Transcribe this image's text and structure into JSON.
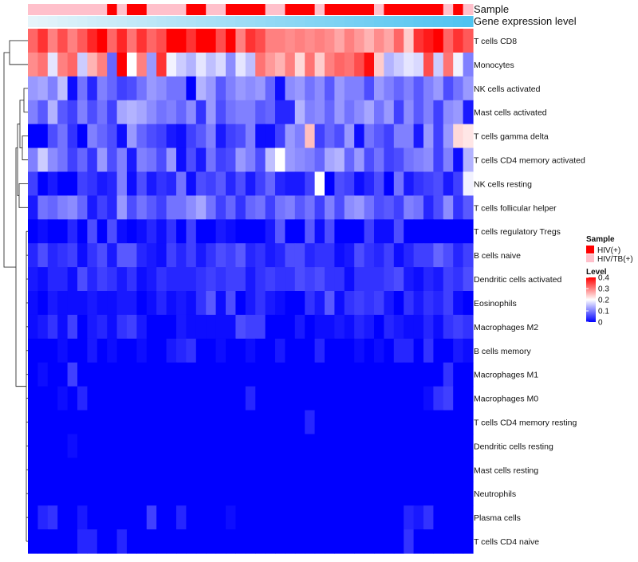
{
  "chart_data": {
    "type": "heatmap",
    "title": "",
    "annotation_tracks": [
      {
        "name": "Sample",
        "label": "Sample"
      },
      {
        "name": "Gene expression level",
        "label": "Gene expression level"
      }
    ],
    "sample_groups": {
      "HIV(+)": "#ff0000",
      "HIV/TB(+)": "#ffc0cb"
    },
    "sample_annotation": [
      "HIV/TB(+)",
      "HIV/TB(+)",
      "HIV/TB(+)",
      "HIV/TB(+)",
      "HIV/TB(+)",
      "HIV/TB(+)",
      "HIV/TB(+)",
      "HIV/TB(+)",
      "HIV(+)",
      "HIV/TB(+)",
      "HIV(+)",
      "HIV(+)",
      "HIV/TB(+)",
      "HIV/TB(+)",
      "HIV/TB(+)",
      "HIV/TB(+)",
      "HIV(+)",
      "HIV(+)",
      "HIV/TB(+)",
      "HIV/TB(+)",
      "HIV(+)",
      "HIV(+)",
      "HIV(+)",
      "HIV(+)",
      "HIV/TB(+)",
      "HIV/TB(+)",
      "HIV(+)",
      "HIV(+)",
      "HIV(+)",
      "HIV/TB(+)",
      "HIV(+)",
      "HIV(+)",
      "HIV(+)",
      "HIV(+)",
      "HIV(+)",
      "HIV/TB(+)",
      "HIV(+)",
      "HIV(+)",
      "HIV(+)",
      "HIV(+)",
      "HIV(+)",
      "HIV(+)",
      "HIV/TB(+)",
      "HIV(+)",
      "HIV/TB(+)"
    ],
    "gene_expression_level": [
      0,
      0.02,
      0.04,
      0.07,
      0.09,
      0.11,
      0.14,
      0.16,
      0.18,
      0.2,
      0.23,
      0.25,
      0.27,
      0.3,
      0.32,
      0.34,
      0.36,
      0.39,
      0.41,
      0.43,
      0.45,
      0.48,
      0.5,
      0.52,
      0.55,
      0.57,
      0.59,
      0.61,
      0.64,
      0.66,
      0.68,
      0.7,
      0.73,
      0.75,
      0.77,
      0.8,
      0.82,
      0.84,
      0.86,
      0.89,
      0.91,
      0.93,
      0.95,
      0.98,
      1
    ],
    "rows": [
      "T cells CD8",
      "Monocytes",
      "NK cells activated",
      "Mast cells activated",
      "T cells gamma delta",
      "T cells CD4 memory activated",
      "NK cells resting",
      "T cells follicular helper",
      "T cells regulatory  Tregs",
      "B cells naive",
      "Dendritic cells activated",
      "Eosinophils",
      "Macrophages M2",
      "B cells memory",
      "Macrophages M1",
      "Macrophages M0",
      "T cells CD4 memory resting",
      "Dendritic cells resting",
      "Mast cells resting",
      "Neutrophils",
      "Plasma cells",
      "T cells CD4 naive"
    ],
    "values": [
      [
        0.32,
        0.36,
        0.3,
        0.34,
        0.3,
        0.33,
        0.37,
        0.4,
        0.32,
        0.37,
        0.31,
        0.36,
        0.32,
        0.34,
        0.4,
        0.4,
        0.36,
        0.4,
        0.4,
        0.34,
        0.4,
        0.3,
        0.36,
        0.34,
        0.3,
        0.3,
        0.29,
        0.3,
        0.29,
        0.3,
        0.29,
        0.27,
        0.3,
        0.28,
        0.26,
        0.29,
        0.27,
        0.32,
        0.24,
        0.36,
        0.38,
        0.4,
        0.32,
        0.36,
        0.33
      ],
      [
        0.29,
        0.31,
        0.18,
        0.3,
        0.32,
        0.16,
        0.26,
        0.3,
        0.08,
        0.4,
        0.2,
        0.3,
        0.12,
        0.36,
        0.19,
        0.16,
        0.14,
        0.18,
        0.15,
        0.17,
        0.11,
        0.18,
        0.15,
        0.31,
        0.28,
        0.26,
        0.3,
        0.23,
        0.31,
        0.24,
        0.3,
        0.32,
        0.31,
        0.34,
        0.39,
        0.24,
        0.14,
        0.16,
        0.18,
        0.17,
        0.34,
        0.16,
        0.31,
        0.19,
        0.1
      ],
      [
        0.12,
        0.13,
        0.1,
        0.15,
        0.01,
        0.09,
        0.03,
        0.1,
        0.08,
        0.05,
        0.06,
        0.09,
        0.12,
        0.11,
        0.09,
        0.09,
        0.0,
        0.14,
        0.12,
        0.07,
        0.1,
        0.12,
        0.11,
        0.12,
        0.08,
        0.01,
        0.11,
        0.12,
        0.09,
        0.11,
        0.07,
        0.12,
        0.1,
        0.1,
        0.06,
        0.12,
        0.1,
        0.08,
        0.1,
        0.07,
        0.1,
        0.12,
        0.06,
        0.09,
        0.12
      ],
      [
        0.1,
        0.07,
        0.14,
        0.07,
        0.05,
        0.1,
        0.06,
        0.09,
        0.05,
        0.13,
        0.14,
        0.13,
        0.11,
        0.09,
        0.1,
        0.08,
        0.11,
        0.04,
        0.12,
        0.06,
        0.09,
        0.1,
        0.1,
        0.07,
        0.08,
        0.03,
        0.03,
        0.14,
        0.1,
        0.11,
        0.08,
        0.12,
        0.09,
        0.11,
        0.13,
        0.09,
        0.12,
        0.05,
        0.11,
        0.07,
        0.1,
        0.05,
        0.11,
        0.12,
        0.02
      ],
      [
        0.0,
        0.0,
        0.06,
        0.09,
        0.04,
        0.0,
        0.1,
        0.08,
        0.06,
        0.01,
        0.12,
        0.08,
        0.06,
        0.05,
        0.02,
        0.01,
        0.05,
        0.07,
        0.1,
        0.02,
        0.05,
        0.06,
        0.1,
        0.01,
        0.01,
        0.05,
        0.12,
        0.1,
        0.25,
        0.05,
        0.08,
        0.06,
        0.12,
        0.01,
        0.09,
        0.07,
        0.05,
        0.1,
        0.1,
        0.02,
        0.12,
        0.05,
        0.12,
        0.23,
        0.22
      ],
      [
        0.1,
        0.16,
        0.11,
        0.09,
        0.05,
        0.08,
        0.04,
        0.12,
        0.06,
        0.1,
        0.02,
        0.1,
        0.09,
        0.06,
        0.12,
        0.01,
        0.06,
        0.02,
        0.09,
        0.05,
        0.06,
        0.12,
        0.1,
        0.06,
        0.15,
        0.2,
        0.12,
        0.11,
        0.1,
        0.08,
        0.13,
        0.14,
        0.08,
        0.12,
        0.06,
        0.09,
        0.05,
        0.06,
        0.09,
        0.1,
        0.11,
        0.05,
        0.1,
        0.01,
        0.14
      ],
      [
        0.05,
        0.0,
        0.02,
        0.0,
        0.0,
        0.05,
        0.04,
        0.02,
        0.03,
        0.1,
        0.01,
        0.06,
        0.02,
        0.04,
        0.03,
        0.09,
        0.01,
        0.06,
        0.05,
        0.07,
        0.03,
        0.06,
        0.02,
        0.05,
        0.08,
        0.03,
        0.02,
        0.02,
        0.05,
        0.2,
        0.0,
        0.06,
        0.05,
        0.01,
        0.03,
        0.06,
        0.0,
        0.09,
        0.02,
        0.04,
        0.05,
        0.06,
        0.02,
        0.05,
        0.19
      ],
      [
        0.02,
        0.09,
        0.08,
        0.1,
        0.11,
        0.08,
        0.02,
        0.05,
        0.03,
        0.12,
        0.06,
        0.09,
        0.07,
        0.05,
        0.09,
        0.09,
        0.11,
        0.13,
        0.09,
        0.05,
        0.08,
        0.04,
        0.08,
        0.09,
        0.05,
        0.09,
        0.1,
        0.07,
        0.09,
        0.05,
        0.1,
        0.06,
        0.11,
        0.12,
        0.09,
        0.06,
        0.07,
        0.05,
        0.1,
        0.09,
        0.03,
        0.06,
        0.11,
        0.04,
        0.07
      ],
      [
        0.0,
        0.01,
        0.0,
        0.0,
        0.03,
        0.0,
        0.06,
        0.0,
        0.06,
        0.01,
        0.0,
        0.01,
        0.03,
        0.01,
        0.04,
        0.0,
        0.05,
        0.0,
        0.0,
        0.02,
        0.01,
        0.0,
        0.0,
        0.0,
        0.02,
        0.07,
        0.0,
        0.0,
        0.07,
        0.01,
        0.06,
        0.0,
        0.0,
        0.0,
        0.05,
        0.01,
        0.01,
        0.06,
        0.0,
        0.0,
        0.0,
        0.0,
        0.0,
        0.0,
        0.0
      ],
      [
        0.03,
        0.06,
        0.03,
        0.04,
        0.05,
        0.01,
        0.04,
        0.06,
        0.02,
        0.07,
        0.07,
        0.03,
        0.02,
        0.01,
        0.05,
        0.03,
        0.05,
        0.02,
        0.04,
        0.06,
        0.05,
        0.07,
        0.03,
        0.04,
        0.02,
        0.03,
        0.06,
        0.06,
        0.03,
        0.04,
        0.04,
        0.01,
        0.02,
        0.06,
        0.04,
        0.03,
        0.05,
        0.01,
        0.03,
        0.05,
        0.05,
        0.08,
        0.06,
        0.03,
        0.05
      ],
      [
        0.02,
        0.01,
        0.03,
        0.03,
        0.01,
        0.06,
        0.03,
        0.05,
        0.04,
        0.02,
        0.04,
        0.01,
        0.02,
        0.04,
        0.03,
        0.03,
        0.03,
        0.04,
        0.05,
        0.04,
        0.05,
        0.05,
        0.02,
        0.04,
        0.05,
        0.04,
        0.04,
        0.06,
        0.05,
        0.06,
        0.04,
        0.04,
        0.01,
        0.04,
        0.04,
        0.04,
        0.05,
        0.06,
        0.02,
        0.01,
        0.03,
        0.02,
        0.05,
        0.04,
        0.06
      ],
      [
        0.01,
        0.0,
        0.02,
        0.01,
        0.01,
        0.01,
        0.02,
        0.01,
        0.01,
        0.02,
        0.02,
        0.0,
        0.01,
        0.03,
        0.01,
        0.02,
        0.01,
        0.04,
        0.07,
        0.01,
        0.06,
        0.0,
        0.02,
        0.04,
        0.02,
        0.01,
        0.0,
        0.0,
        0.04,
        0.02,
        0.07,
        0.01,
        0.04,
        0.05,
        0.04,
        0.05,
        0.02,
        0.0,
        0.04,
        0.02,
        0.04,
        0.03,
        0.05,
        0.01,
        0.0
      ],
      [
        0.01,
        0.02,
        0.04,
        0.01,
        0.05,
        0.0,
        0.02,
        0.03,
        0.01,
        0.04,
        0.05,
        0.02,
        0.0,
        0.0,
        0.0,
        0.02,
        0.01,
        0.01,
        0.01,
        0.01,
        0.01,
        0.06,
        0.05,
        0.05,
        0.0,
        0.0,
        0.0,
        0.02,
        0.0,
        0.01,
        0.01,
        0.02,
        0.01,
        0.03,
        0.02,
        0.0,
        0.03,
        0.02,
        0.01,
        0.01,
        0.03,
        0.01,
        0.04,
        0.05,
        0.04
      ],
      [
        0.0,
        0.0,
        0.0,
        0.01,
        0.0,
        0.0,
        0.02,
        0.0,
        0.01,
        0.0,
        0.0,
        0.01,
        0.0,
        0.0,
        0.02,
        0.03,
        0.04,
        0.0,
        0.0,
        0.01,
        0.0,
        0.0,
        0.01,
        0.0,
        0.0,
        0.02,
        0.0,
        0.0,
        0.0,
        0.03,
        0.0,
        0.0,
        0.0,
        0.01,
        0.0,
        0.01,
        0.0,
        0.03,
        0.03,
        0.0,
        0.04,
        0.0,
        0.0,
        0.02,
        0.01
      ],
      [
        0.0,
        0.01,
        0.0,
        0.0,
        0.05,
        0.0,
        0.0,
        0.0,
        0.0,
        0.0,
        0.0,
        0.0,
        0.0,
        0.0,
        0.0,
        0.0,
        0.0,
        0.0,
        0.0,
        0.0,
        0.0,
        0.0,
        0.0,
        0.0,
        0.0,
        0.0,
        0.0,
        0.0,
        0.0,
        0.0,
        0.0,
        0.0,
        0.0,
        0.0,
        0.0,
        0.0,
        0.0,
        0.0,
        0.0,
        0.0,
        0.0,
        0.0,
        0.04,
        0.0,
        0.0
      ],
      [
        0.0,
        0.0,
        0.0,
        0.01,
        0.0,
        0.03,
        0.0,
        0.0,
        0.0,
        0.0,
        0.0,
        0.0,
        0.0,
        0.0,
        0.0,
        0.0,
        0.0,
        0.0,
        0.0,
        0.0,
        0.0,
        0.0,
        0.03,
        0.0,
        0.0,
        0.0,
        0.0,
        0.0,
        0.0,
        0.0,
        0.0,
        0.0,
        0.0,
        0.0,
        0.0,
        0.0,
        0.0,
        0.0,
        0.0,
        0.0,
        0.01,
        0.04,
        0.05,
        0.0,
        0.0
      ],
      [
        0.0,
        0.0,
        0.0,
        0.0,
        0.0,
        0.0,
        0.0,
        0.0,
        0.0,
        0.0,
        0.0,
        0.0,
        0.0,
        0.0,
        0.0,
        0.0,
        0.0,
        0.0,
        0.0,
        0.0,
        0.0,
        0.0,
        0.0,
        0.0,
        0.0,
        0.0,
        0.0,
        0.0,
        0.03,
        0.0,
        0.0,
        0.0,
        0.0,
        0.0,
        0.0,
        0.0,
        0.0,
        0.0,
        0.0,
        0.0,
        0.0,
        0.0,
        0.0,
        0.0,
        0.0
      ],
      [
        0.0,
        0.0,
        0.0,
        0.0,
        0.01,
        0.0,
        0.0,
        0.0,
        0.0,
        0.0,
        0.0,
        0.0,
        0.0,
        0.0,
        0.0,
        0.0,
        0.0,
        0.0,
        0.0,
        0.0,
        0.0,
        0.0,
        0.0,
        0.0,
        0.0,
        0.0,
        0.0,
        0.0,
        0.0,
        0.0,
        0.0,
        0.0,
        0.0,
        0.0,
        0.0,
        0.0,
        0.0,
        0.0,
        0.0,
        0.0,
        0.0,
        0.0,
        0.0,
        0.0,
        0.0
      ],
      [
        0.0,
        0.0,
        0.0,
        0.0,
        0.0,
        0.0,
        0.0,
        0.0,
        0.0,
        0.0,
        0.0,
        0.0,
        0.0,
        0.0,
        0.0,
        0.0,
        0.0,
        0.0,
        0.0,
        0.0,
        0.0,
        0.0,
        0.0,
        0.0,
        0.0,
        0.0,
        0.0,
        0.0,
        0.0,
        0.0,
        0.0,
        0.0,
        0.0,
        0.0,
        0.0,
        0.0,
        0.0,
        0.0,
        0.0,
        0.0,
        0.0,
        0.0,
        0.0,
        0.0,
        0.0
      ],
      [
        0.0,
        0.0,
        0.0,
        0.0,
        0.0,
        0.0,
        0.0,
        0.0,
        0.0,
        0.0,
        0.0,
        0.0,
        0.0,
        0.0,
        0.0,
        0.0,
        0.0,
        0.0,
        0.0,
        0.0,
        0.0,
        0.0,
        0.0,
        0.0,
        0.0,
        0.0,
        0.0,
        0.0,
        0.0,
        0.0,
        0.0,
        0.0,
        0.0,
        0.0,
        0.0,
        0.0,
        0.0,
        0.0,
        0.0,
        0.0,
        0.0,
        0.0,
        0.0,
        0.0,
        0.0
      ],
      [
        0.0,
        0.03,
        0.04,
        0.0,
        0.0,
        0.02,
        0.0,
        0.0,
        0.0,
        0.0,
        0.0,
        0.0,
        0.05,
        0.0,
        0.0,
        0.03,
        0.0,
        0.0,
        0.0,
        0.0,
        0.01,
        0.0,
        0.0,
        0.0,
        0.0,
        0.0,
        0.0,
        0.0,
        0.0,
        0.0,
        0.0,
        0.0,
        0.0,
        0.0,
        0.0,
        0.0,
        0.0,
        0.0,
        0.03,
        0.02,
        0.04,
        0.0,
        0.0,
        0.0,
        0.0
      ],
      [
        0.0,
        0.0,
        0.0,
        0.0,
        0.0,
        0.03,
        0.03,
        0.0,
        0.0,
        0.03,
        0.0,
        0.0,
        0.0,
        0.0,
        0.0,
        0.0,
        0.0,
        0.0,
        0.0,
        0.0,
        0.0,
        0.0,
        0.0,
        0.0,
        0.0,
        0.0,
        0.0,
        0.0,
        0.0,
        0.0,
        0.0,
        0.0,
        0.0,
        0.0,
        0.0,
        0.0,
        0.0,
        0.0,
        0.04,
        0.0,
        0.0,
        0.0,
        0.0,
        0.0,
        0.0
      ]
    ],
    "legend": {
      "sample_title": "Sample",
      "sample_entries": [
        "HIV(+)",
        "HIV/TB(+)"
      ],
      "level_title": "Level",
      "level_ticks": [
        "0.4",
        "0.3",
        "0.2",
        "0.1",
        "0"
      ],
      "level_tick_values": [
        0.4,
        0.3,
        0.2,
        0.1,
        0
      ],
      "range": [
        0,
        0.4
      ]
    },
    "colors": {
      "low": "#0000ff",
      "mid": "#ffffff",
      "high": "#ff0000",
      "gene_low": "#e6f4fa",
      "gene_high": "#4fc3f0"
    }
  }
}
